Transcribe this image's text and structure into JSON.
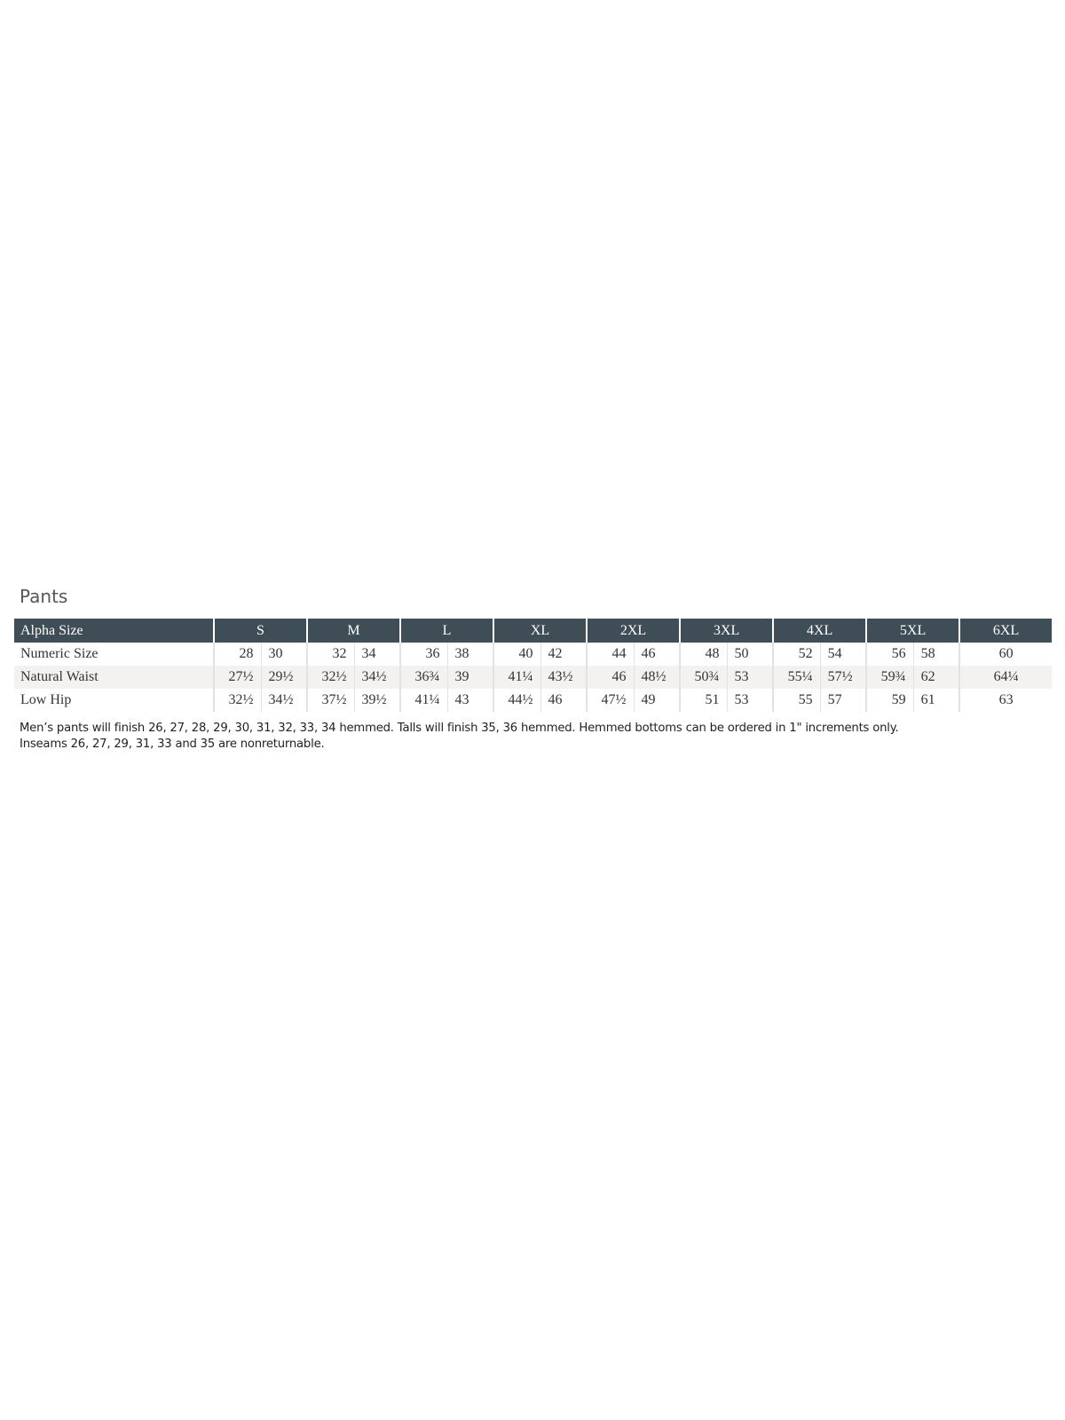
{
  "title": "Pants",
  "header": {
    "label": "Alpha Size",
    "sizes": [
      "S",
      "M",
      "L",
      "XL",
      "2XL",
      "3XL",
      "4XL",
      "5XL",
      "6XL"
    ]
  },
  "rows": [
    {
      "label": "Numeric Size",
      "values": [
        [
          "28",
          "30"
        ],
        [
          "32",
          "34"
        ],
        [
          "36",
          "38"
        ],
        [
          "40",
          "42"
        ],
        [
          "44",
          "46"
        ],
        [
          "48",
          "50"
        ],
        [
          "52",
          "54"
        ],
        [
          "56",
          "58"
        ],
        [
          "60"
        ]
      ]
    },
    {
      "label": "Natural Waist",
      "values": [
        [
          "27½",
          "29½"
        ],
        [
          "32½",
          "34½"
        ],
        [
          "36¾",
          "39"
        ],
        [
          "41¼",
          "43½"
        ],
        [
          "46",
          "48½"
        ],
        [
          "50¾",
          "53"
        ],
        [
          "55¼",
          "57½"
        ],
        [
          "59¾",
          "62"
        ],
        [
          "64¼"
        ]
      ]
    },
    {
      "label": "Low Hip",
      "values": [
        [
          "32½",
          "34½"
        ],
        [
          "37½",
          "39½"
        ],
        [
          "41¼",
          "43"
        ],
        [
          "44½",
          "46"
        ],
        [
          "47½",
          "49"
        ],
        [
          "51",
          "53"
        ],
        [
          "55",
          "57"
        ],
        [
          "59",
          "61"
        ],
        [
          "63"
        ]
      ]
    }
  ],
  "notes": [
    "Men’s pants will finish 26, 27, 28, 29, 30, 31, 32, 33, 34 hemmed. Talls will finish 35, 36 hemmed. Hemmed bottoms can be ordered in 1\" increments only.",
    "Inseams 26, 27, 29, 31, 33 and 35 are nonreturnable."
  ],
  "colors": {
    "header_bg": "#3f4d57",
    "shade_row": "#f3f2f0"
  }
}
